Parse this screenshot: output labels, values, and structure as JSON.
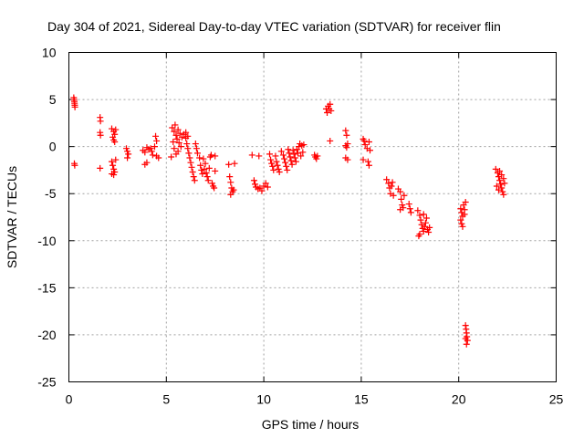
{
  "chart_data": {
    "type": "scatter",
    "title": "Day 304 of 2021, Sidereal Day-to-day VTEC variation (SDTVAR) for receiver flin",
    "xlabel": "GPS time / hours",
    "ylabel": "SDTVAR / TECUs",
    "xlim": [
      0,
      25
    ],
    "ylim": [
      -25,
      10
    ],
    "xticks": [
      "0",
      "5",
      "10",
      "15",
      "20",
      "25"
    ],
    "yticks": [
      "10",
      "5",
      "0",
      "-5",
      "-10",
      "-15",
      "-20",
      "-25"
    ],
    "grid": true,
    "marker": "plus",
    "color": "#ff0000",
    "series": [
      {
        "name": "SDTVAR",
        "points": [
          [
            0.25,
            5.2
          ],
          [
            0.27,
            5.0
          ],
          [
            0.28,
            4.8
          ],
          [
            0.29,
            4.6
          ],
          [
            0.3,
            4.4
          ],
          [
            0.31,
            4.2
          ],
          [
            0.28,
            -1.8
          ],
          [
            0.3,
            -2.0
          ],
          [
            1.6,
            3.1
          ],
          [
            1.62,
            2.7
          ],
          [
            1.6,
            1.5
          ],
          [
            1.62,
            1.2
          ],
          [
            1.6,
            -2.3
          ],
          [
            2.2,
            1.9
          ],
          [
            2.3,
            1.6
          ],
          [
            2.35,
            1.3
          ],
          [
            2.25,
            1.0
          ],
          [
            2.3,
            0.7
          ],
          [
            2.35,
            0.5
          ],
          [
            2.4,
            1.8
          ],
          [
            2.2,
            -1.6
          ],
          [
            2.25,
            -2.0
          ],
          [
            2.3,
            -2.4
          ],
          [
            2.35,
            -2.7
          ],
          [
            2.3,
            -3.0
          ],
          [
            2.4,
            -1.4
          ],
          [
            2.2,
            -2.9
          ],
          [
            2.95,
            -0.2
          ],
          [
            3.0,
            -0.5
          ],
          [
            3.05,
            -0.8
          ],
          [
            3.0,
            -1.2
          ],
          [
            3.8,
            -0.4
          ],
          [
            3.9,
            -0.6
          ],
          [
            4.0,
            -0.1
          ],
          [
            4.1,
            -0.3
          ],
          [
            4.2,
            -0.2
          ],
          [
            4.25,
            -0.5
          ],
          [
            4.3,
            -0.9
          ],
          [
            4.4,
            0.0
          ],
          [
            4.45,
            1.1
          ],
          [
            4.5,
            0.6
          ],
          [
            4.5,
            -1.0
          ],
          [
            4.0,
            -1.7
          ],
          [
            3.9,
            -1.9
          ],
          [
            4.6,
            -1.2
          ],
          [
            5.3,
            2.0
          ],
          [
            5.4,
            1.6
          ],
          [
            5.45,
            2.3
          ],
          [
            5.5,
            1.2
          ],
          [
            5.55,
            0.8
          ],
          [
            5.6,
            1.8
          ],
          [
            5.65,
            0.4
          ],
          [
            5.7,
            1.4
          ],
          [
            5.75,
            0.0
          ],
          [
            5.8,
            1.0
          ],
          [
            5.35,
            0.5
          ],
          [
            5.4,
            -0.2
          ],
          [
            5.5,
            -0.8
          ],
          [
            5.25,
            -1.1
          ],
          [
            5.6,
            -0.5
          ],
          [
            5.9,
            1.3
          ],
          [
            6.0,
            0.9
          ],
          [
            6.05,
            0.3
          ],
          [
            6.1,
            -0.2
          ],
          [
            6.15,
            -0.7
          ],
          [
            6.2,
            -1.2
          ],
          [
            6.25,
            -1.7
          ],
          [
            6.3,
            -2.2
          ],
          [
            6.35,
            -2.7
          ],
          [
            6.4,
            -3.2
          ],
          [
            6.45,
            -3.6
          ],
          [
            6.0,
            1.5
          ],
          [
            6.1,
            1.1
          ],
          [
            6.5,
            0.3
          ],
          [
            6.55,
            -0.2
          ],
          [
            6.6,
            -0.7
          ],
          [
            6.7,
            -1.2
          ],
          [
            6.75,
            -2.0
          ],
          [
            6.8,
            -2.5
          ],
          [
            6.9,
            -1.3
          ],
          [
            7.0,
            -1.8
          ],
          [
            7.05,
            -2.8
          ],
          [
            7.1,
            -3.2
          ],
          [
            7.15,
            -3.6
          ],
          [
            7.2,
            -2.3
          ],
          [
            7.25,
            -1.1
          ],
          [
            7.3,
            -0.9
          ],
          [
            7.35,
            -3.9
          ],
          [
            7.4,
            -4.2
          ],
          [
            7.45,
            -4.4
          ],
          [
            7.5,
            -2.6
          ],
          [
            7.5,
            -1.0
          ],
          [
            6.85,
            -2.9
          ],
          [
            6.95,
            -2.4
          ],
          [
            8.2,
            -1.9
          ],
          [
            8.25,
            -3.2
          ],
          [
            8.3,
            -3.8
          ],
          [
            8.35,
            -4.4
          ],
          [
            8.4,
            -4.8
          ],
          [
            8.3,
            -5.1
          ],
          [
            8.45,
            -4.6
          ],
          [
            8.5,
            -1.8
          ],
          [
            9.4,
            -0.9
          ],
          [
            9.5,
            -3.6
          ],
          [
            9.55,
            -4.0
          ],
          [
            9.6,
            -4.3
          ],
          [
            9.7,
            -4.5
          ],
          [
            9.75,
            -1.0
          ],
          [
            9.8,
            -4.4
          ],
          [
            9.9,
            -4.7
          ],
          [
            10.0,
            -4.2
          ],
          [
            10.1,
            -3.9
          ],
          [
            10.2,
            -4.3
          ],
          [
            10.3,
            -0.8
          ],
          [
            10.35,
            -1.4
          ],
          [
            10.4,
            -1.8
          ],
          [
            10.45,
            -2.1
          ],
          [
            10.5,
            -2.5
          ],
          [
            10.6,
            -1.0
          ],
          [
            10.65,
            -1.6
          ],
          [
            10.7,
            -2.0
          ],
          [
            10.75,
            -2.4
          ],
          [
            10.8,
            -2.7
          ],
          [
            10.9,
            -0.5
          ],
          [
            11.0,
            -0.9
          ],
          [
            11.05,
            -1.3
          ],
          [
            11.1,
            -1.7
          ],
          [
            11.15,
            -2.1
          ],
          [
            11.2,
            -2.5
          ],
          [
            11.25,
            -0.3
          ],
          [
            11.3,
            -0.7
          ],
          [
            11.35,
            -1.1
          ],
          [
            11.4,
            -1.5
          ],
          [
            11.45,
            -1.9
          ],
          [
            11.5,
            -0.4
          ],
          [
            11.55,
            -0.8
          ],
          [
            11.6,
            -1.2
          ],
          [
            11.65,
            -1.6
          ],
          [
            11.7,
            -0.3
          ],
          [
            11.75,
            -0.7
          ],
          [
            11.8,
            0.0
          ],
          [
            11.85,
            0.3
          ],
          [
            11.9,
            -1.0
          ],
          [
            11.95,
            0.1
          ],
          [
            12.0,
            -0.6
          ],
          [
            12.05,
            0.2
          ],
          [
            12.6,
            -0.9
          ],
          [
            12.65,
            -1.1
          ],
          [
            12.7,
            -1.3
          ],
          [
            12.75,
            -1.0
          ],
          [
            13.2,
            4.0
          ],
          [
            13.25,
            3.6
          ],
          [
            13.3,
            4.3
          ],
          [
            13.35,
            4.0
          ],
          [
            13.4,
            4.5
          ],
          [
            13.45,
            3.8
          ],
          [
            13.4,
            0.6
          ],
          [
            14.2,
            1.7
          ],
          [
            14.25,
            1.2
          ],
          [
            14.2,
            0.1
          ],
          [
            14.25,
            -0.1
          ],
          [
            14.2,
            -1.2
          ],
          [
            14.3,
            -1.4
          ],
          [
            14.3,
            0.3
          ],
          [
            15.1,
            0.8
          ],
          [
            15.15,
            0.6
          ],
          [
            15.1,
            -1.4
          ],
          [
            15.2,
            0.2
          ],
          [
            15.3,
            -0.2
          ],
          [
            15.4,
            0.5
          ],
          [
            15.45,
            -0.4
          ],
          [
            15.35,
            -1.6
          ],
          [
            15.4,
            -2.0
          ],
          [
            16.3,
            -3.5
          ],
          [
            16.4,
            -3.9
          ],
          [
            16.45,
            -4.4
          ],
          [
            16.5,
            -5.0
          ],
          [
            16.55,
            -4.2
          ],
          [
            16.6,
            -3.8
          ],
          [
            16.65,
            -5.2
          ],
          [
            16.9,
            -4.5
          ],
          [
            17.0,
            -4.8
          ],
          [
            17.05,
            -5.6
          ],
          [
            17.1,
            -6.2
          ],
          [
            17.0,
            -6.7
          ],
          [
            17.15,
            -6.5
          ],
          [
            17.2,
            -5.2
          ],
          [
            17.45,
            -6.1
          ],
          [
            17.5,
            -6.6
          ],
          [
            17.55,
            -7.0
          ],
          [
            17.9,
            -6.8
          ],
          [
            18.0,
            -7.3
          ],
          [
            18.05,
            -7.8
          ],
          [
            18.1,
            -8.3
          ],
          [
            18.15,
            -8.7
          ],
          [
            18.2,
            -9.0
          ],
          [
            18.25,
            -8.5
          ],
          [
            18.3,
            -8.1
          ],
          [
            18.35,
            -7.6
          ],
          [
            18.4,
            -8.8
          ],
          [
            18.45,
            -9.1
          ],
          [
            18.2,
            -7.2
          ],
          [
            18.0,
            -9.3
          ],
          [
            17.95,
            -9.5
          ],
          [
            18.5,
            -8.6
          ],
          [
            20.1,
            -6.6
          ],
          [
            20.15,
            -7.0
          ],
          [
            20.2,
            -7.4
          ],
          [
            20.25,
            -6.2
          ],
          [
            20.3,
            -6.7
          ],
          [
            20.35,
            -5.9
          ],
          [
            20.1,
            -7.8
          ],
          [
            20.15,
            -8.2
          ],
          [
            20.2,
            -8.5
          ],
          [
            20.3,
            -7.2
          ],
          [
            20.35,
            -19.0
          ],
          [
            20.38,
            -19.4
          ],
          [
            20.4,
            -19.8
          ],
          [
            20.42,
            -20.2
          ],
          [
            20.45,
            -20.6
          ],
          [
            20.4,
            -21.0
          ],
          [
            20.35,
            -20.4
          ],
          [
            21.9,
            -2.4
          ],
          [
            22.0,
            -2.8
          ],
          [
            22.05,
            -3.2
          ],
          [
            22.1,
            -3.6
          ],
          [
            22.15,
            -4.0
          ],
          [
            22.2,
            -4.4
          ],
          [
            22.25,
            -4.8
          ],
          [
            22.3,
            -5.1
          ],
          [
            22.1,
            -2.6
          ],
          [
            22.2,
            -3.0
          ],
          [
            22.3,
            -3.4
          ],
          [
            22.35,
            -3.9
          ],
          [
            21.95,
            -4.2
          ],
          [
            22.05,
            -4.6
          ]
        ]
      }
    ]
  }
}
